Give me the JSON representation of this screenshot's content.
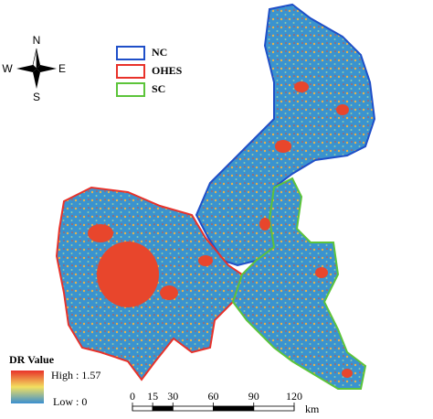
{
  "compass": {
    "north": "N",
    "south": "S",
    "west": "W",
    "east": "E"
  },
  "legend": {
    "items": [
      {
        "label": "NC",
        "color": "#1f4fc8"
      },
      {
        "label": "OHES",
        "color": "#e8322a"
      },
      {
        "label": "SC",
        "color": "#5cc43a"
      }
    ]
  },
  "color_bar": {
    "title": "DR Value",
    "high": "High : 1.57",
    "low": "Low : 0"
  },
  "scale_bar": {
    "ticks": [
      0,
      15,
      30,
      60,
      90,
      120
    ],
    "unit": "km"
  }
}
